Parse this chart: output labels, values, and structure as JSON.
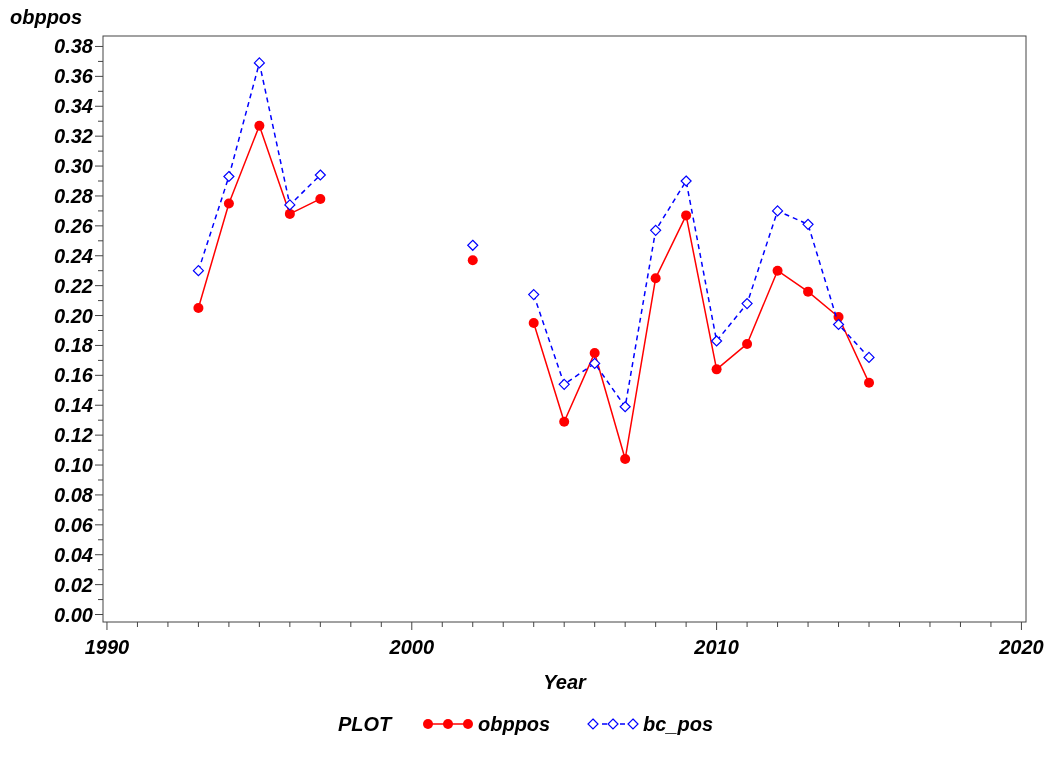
{
  "chart_data": {
    "type": "line",
    "xlabel": "Year",
    "ylabel": "obppos",
    "legend_title": "PLOT",
    "legend": "bottom",
    "grid": false,
    "x": [
      1993,
      1994,
      1995,
      1996,
      1997,
      1998,
      2002,
      2003,
      2004,
      2005,
      2006,
      2007,
      2008,
      2009,
      2010,
      2011,
      2012,
      2013,
      2014,
      2015
    ],
    "series": [
      {
        "name": "obppos",
        "color": "#ff0000",
        "marker": "circle",
        "line_style": "solid",
        "values": [
          0.205,
          0.275,
          0.327,
          0.268,
          0.278,
          null,
          0.237,
          null,
          0.195,
          0.129,
          0.175,
          0.104,
          0.225,
          0.267,
          0.164,
          0.181,
          0.23,
          0.216,
          0.199,
          0.155
        ]
      },
      {
        "name": "bc_pos",
        "color": "#0000ff",
        "marker": "diamond",
        "line_style": "dashed",
        "values": [
          0.23,
          0.293,
          0.369,
          0.274,
          0.294,
          null,
          0.247,
          null,
          0.214,
          0.154,
          0.168,
          0.139,
          0.257,
          0.29,
          0.183,
          0.208,
          0.27,
          0.261,
          0.194,
          0.172
        ]
      }
    ],
    "xlim": [
      1989.87,
      2020.15
    ],
    "ylim": [
      -0.005,
      0.387
    ],
    "xticks": [
      1990,
      {
        "value": 1991,
        "label": null
      },
      {
        "value": 1992,
        "label": null
      },
      {
        "value": 1993,
        "label": null
      },
      {
        "value": 1994,
        "label": null
      },
      {
        "value": 1995,
        "label": null
      },
      {
        "value": 1996,
        "label": null
      },
      {
        "value": 1997,
        "label": null
      },
      {
        "value": 1998,
        "label": null
      },
      {
        "value": 1999,
        "label": null
      },
      2000,
      {
        "value": 2001,
        "label": null
      },
      {
        "value": 2002,
        "label": null
      },
      {
        "value": 2003,
        "label": null
      },
      {
        "value": 2004,
        "label": null
      },
      {
        "value": 2005,
        "label": null
      },
      {
        "value": 2006,
        "label": null
      },
      {
        "value": 2007,
        "label": null
      },
      {
        "value": 2008,
        "label": null
      },
      {
        "value": 2009,
        "label": null
      },
      2010,
      {
        "value": 2011,
        "label": null
      },
      {
        "value": 2012,
        "label": null
      },
      {
        "value": 2013,
        "label": null
      },
      {
        "value": 2014,
        "label": null
      },
      {
        "value": 2015,
        "label": null
      },
      {
        "value": 2016,
        "label": null
      },
      {
        "value": 2017,
        "label": null
      },
      {
        "value": 2018,
        "label": null
      },
      {
        "value": 2019,
        "label": null
      },
      2020
    ],
    "yticks": [
      {
        "value": 0,
        "label": "0.00"
      },
      {
        "value": 0.01,
        "label": null
      },
      {
        "value": 0.02,
        "label": "0.02"
      },
      {
        "value": 0.03,
        "label": null
      },
      {
        "value": 0.04,
        "label": "0.04"
      },
      {
        "value": 0.05,
        "label": null
      },
      {
        "value": 0.06,
        "label": "0.06"
      },
      {
        "value": 0.07,
        "label": null
      },
      {
        "value": 0.08,
        "label": "0.08"
      },
      {
        "value": 0.09,
        "label": null
      },
      {
        "value": 0.1,
        "label": "0.10"
      },
      {
        "value": 0.11,
        "label": null
      },
      {
        "value": 0.12,
        "label": "0.12"
      },
      {
        "value": 0.13,
        "label": null
      },
      {
        "value": 0.14,
        "label": "0.14"
      },
      {
        "value": 0.15,
        "label": null
      },
      {
        "value": 0.16,
        "label": "0.16"
      },
      {
        "value": 0.17,
        "label": null
      },
      {
        "value": 0.18,
        "label": "0.18"
      },
      {
        "value": 0.19,
        "label": null
      },
      {
        "value": 0.2,
        "label": "0.20"
      },
      {
        "value": 0.21,
        "label": null
      },
      {
        "value": 0.22,
        "label": "0.22"
      },
      {
        "value": 0.23,
        "label": null
      },
      {
        "value": 0.24,
        "label": "0.24"
      },
      {
        "value": 0.25,
        "label": null
      },
      {
        "value": 0.26,
        "label": "0.26"
      },
      {
        "value": 0.27,
        "label": null
      },
      {
        "value": 0.28,
        "label": "0.28"
      },
      {
        "value": 0.29,
        "label": null
      },
      {
        "value": 0.3,
        "label": "0.30"
      },
      {
        "value": 0.31,
        "label": null
      },
      {
        "value": 0.32,
        "label": "0.32"
      },
      {
        "value": 0.33,
        "label": null
      },
      {
        "value": 0.34,
        "label": "0.34"
      },
      {
        "value": 0.35,
        "label": null
      },
      {
        "value": 0.36,
        "label": "0.36"
      },
      {
        "value": 0.37,
        "label": null
      },
      {
        "value": 0.38,
        "label": "0.38"
      }
    ]
  }
}
